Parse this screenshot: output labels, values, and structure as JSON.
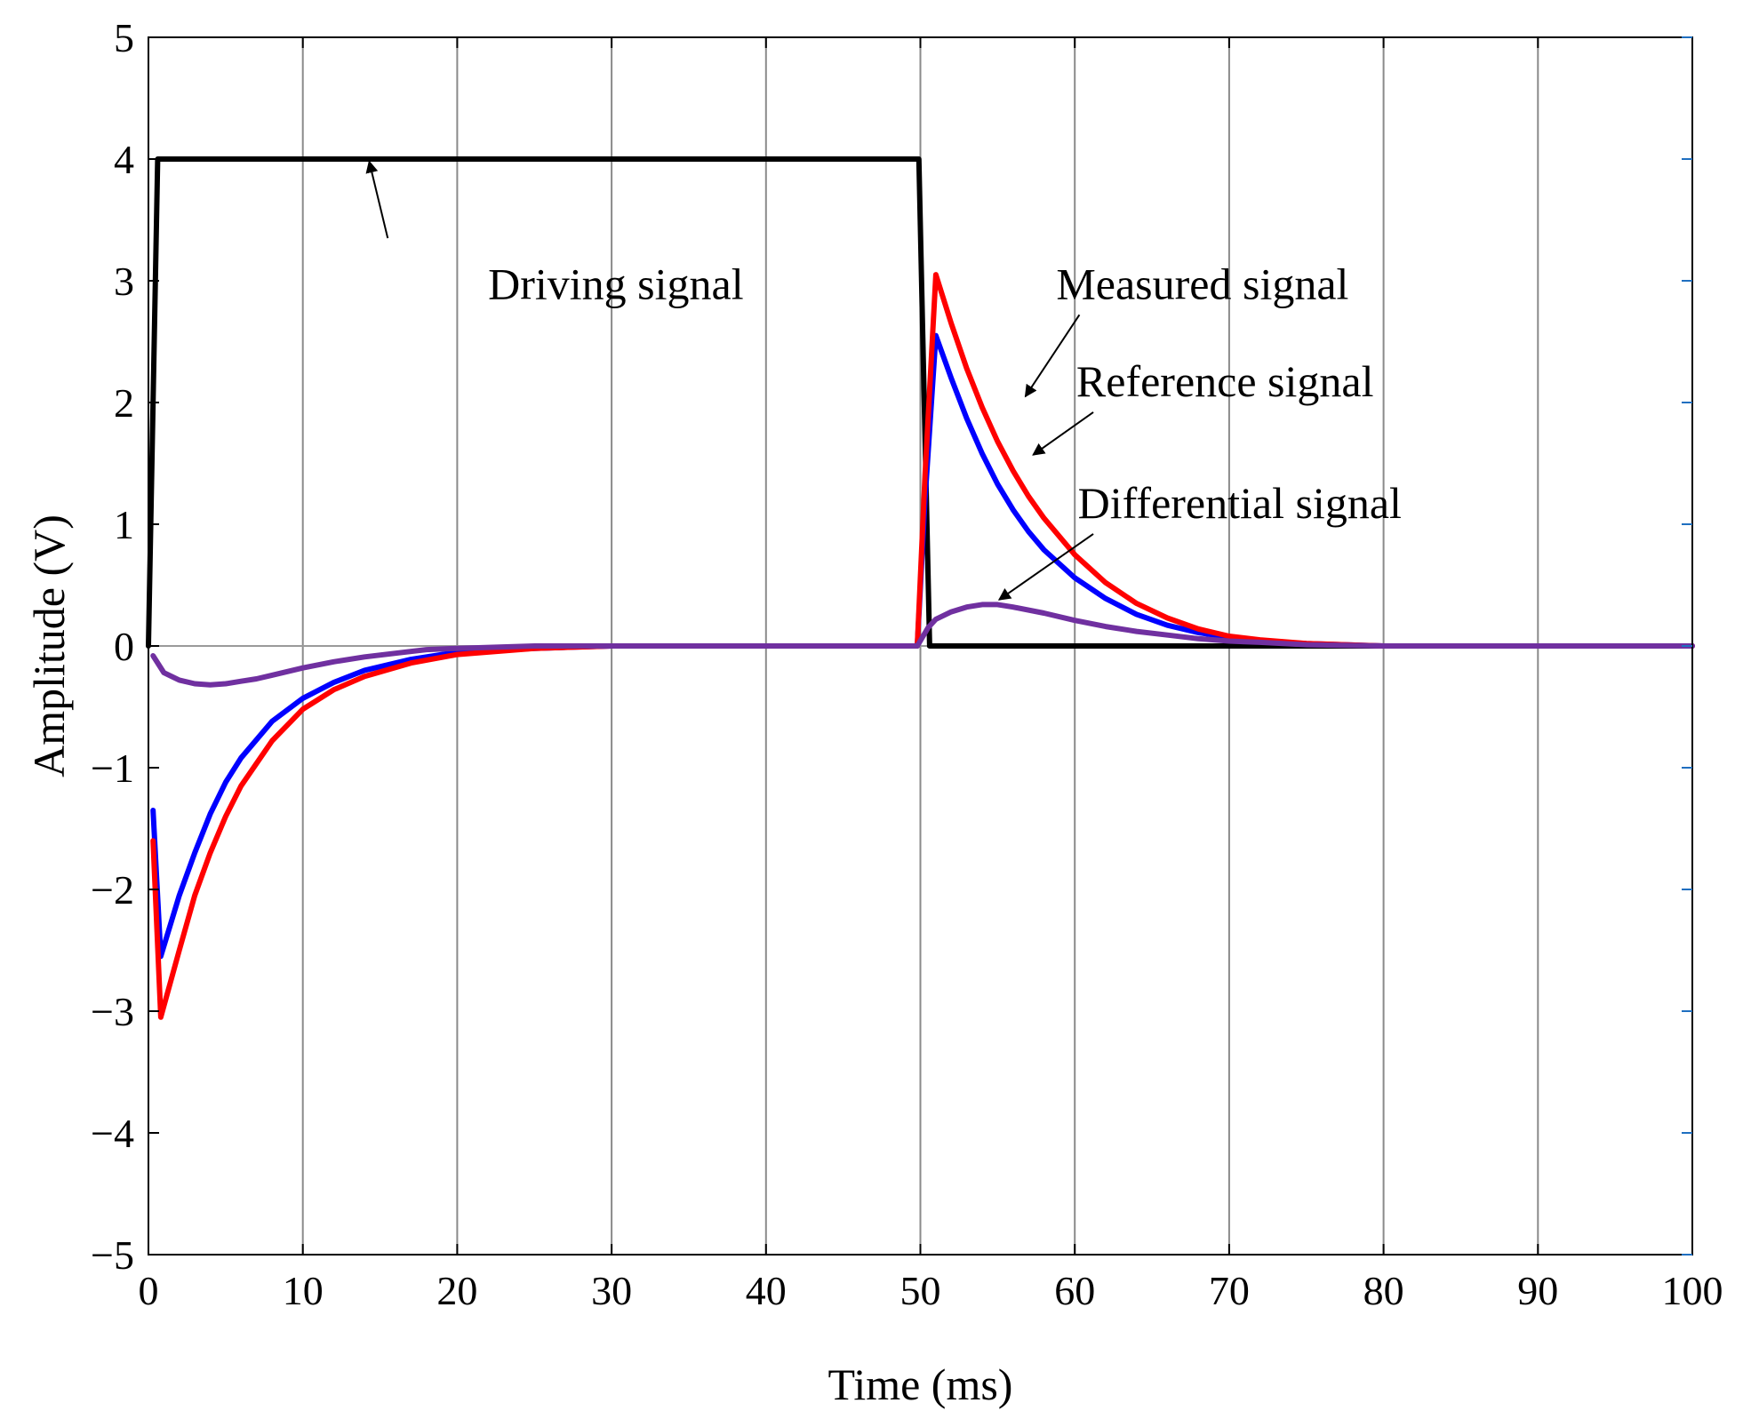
{
  "chart_data": {
    "type": "line",
    "title": "",
    "xlabel": "Time (ms)",
    "ylabel": "Amplitude (V)",
    "xlim": [
      0,
      100
    ],
    "ylim": [
      -5,
      5
    ],
    "xticks": [
      0,
      10,
      20,
      30,
      40,
      50,
      60,
      70,
      80,
      90,
      100
    ],
    "yticks": [
      5,
      4,
      3,
      2,
      1,
      0,
      -1,
      -2,
      -3,
      -4,
      -5
    ],
    "ytick_labels": [
      "5",
      "4",
      "3",
      "2",
      "1",
      "0",
      "−1",
      "−2",
      "−3",
      "−4",
      "−5"
    ],
    "xgrid": true,
    "ygrid": false,
    "series": [
      {
        "name": "Driving signal",
        "color": "#000000",
        "x": [
          0,
          0.6,
          49.9,
          50.6,
          100
        ],
        "y": [
          0,
          4,
          4,
          0,
          0
        ]
      },
      {
        "name": "Reference signal",
        "color": "#0000ff",
        "x": [
          0.3,
          0.8,
          2,
          3,
          4,
          5,
          6,
          8,
          10,
          12,
          14,
          17,
          20,
          25,
          30,
          35,
          40,
          45,
          49.8,
          50.3,
          51,
          52,
          53,
          54,
          55,
          56,
          57,
          58,
          60,
          62,
          64,
          66,
          68,
          70,
          72,
          75,
          80,
          90,
          100
        ],
        "y": [
          -1.35,
          -2.55,
          -2.05,
          -1.7,
          -1.38,
          -1.12,
          -0.92,
          -0.62,
          -0.43,
          -0.3,
          -0.2,
          -0.11,
          -0.05,
          -0.02,
          0,
          0,
          0,
          0,
          0,
          1.2,
          2.55,
          2.2,
          1.87,
          1.58,
          1.33,
          1.12,
          0.94,
          0.79,
          0.56,
          0.39,
          0.26,
          0.17,
          0.11,
          0.07,
          0.04,
          0.02,
          0,
          0,
          0
        ]
      },
      {
        "name": "Measured signal",
        "color": "#ff0000",
        "x": [
          0.3,
          0.8,
          2,
          3,
          4,
          5,
          6,
          8,
          10,
          12,
          14,
          17,
          20,
          25,
          30,
          35,
          40,
          45,
          49.8,
          50.3,
          51,
          52,
          53,
          54,
          55,
          56,
          57,
          58,
          60,
          62,
          64,
          66,
          68,
          70,
          72,
          75,
          80,
          90,
          100
        ],
        "y": [
          -1.6,
          -3.05,
          -2.5,
          -2.05,
          -1.7,
          -1.4,
          -1.15,
          -0.78,
          -0.52,
          -0.36,
          -0.25,
          -0.14,
          -0.07,
          -0.02,
          0,
          0,
          0,
          0,
          0,
          1.4,
          3.05,
          2.65,
          2.28,
          1.96,
          1.68,
          1.44,
          1.23,
          1.05,
          0.75,
          0.52,
          0.35,
          0.23,
          0.14,
          0.08,
          0.05,
          0.02,
          0,
          0,
          0
        ]
      },
      {
        "name": "Differential signal",
        "color": "#7030a0",
        "x": [
          0.3,
          1,
          2,
          3,
          4,
          5,
          6,
          7,
          8,
          10,
          12,
          14,
          16,
          18,
          20,
          25,
          30,
          40,
          49.8,
          50.5,
          51,
          52,
          53,
          54,
          55,
          56,
          58,
          60,
          62,
          64,
          66,
          68,
          70,
          72,
          75,
          80,
          90,
          100
        ],
        "y": [
          -0.08,
          -0.22,
          -0.28,
          -0.31,
          -0.32,
          -0.31,
          -0.29,
          -0.27,
          -0.24,
          -0.18,
          -0.13,
          -0.09,
          -0.06,
          -0.03,
          -0.02,
          0,
          0,
          0,
          0,
          0.15,
          0.22,
          0.28,
          0.32,
          0.34,
          0.34,
          0.32,
          0.27,
          0.21,
          0.16,
          0.12,
          0.09,
          0.06,
          0.04,
          0.03,
          0.01,
          0,
          0,
          0
        ]
      }
    ],
    "annotations": [
      {
        "text": "Driving signal",
        "text_x": 22,
        "text_y": 2.85,
        "arrow_from": [
          15.5,
          3.35
        ],
        "arrow_to": [
          14.3,
          3.98
        ]
      },
      {
        "text": "Measured signal",
        "text_x": 58.8,
        "text_y": 2.85,
        "arrow_from": [
          60.3,
          2.72
        ],
        "arrow_to": [
          56.8,
          2.05
        ]
      },
      {
        "text": "Reference signal",
        "text_x": 60.1,
        "text_y": 2.05,
        "arrow_from": [
          61.2,
          1.92
        ],
        "arrow_to": [
          57.3,
          1.57
        ]
      },
      {
        "text": "Differential signal",
        "text_x": 60.2,
        "text_y": 1.05,
        "arrow_from": [
          61.2,
          0.92
        ],
        "arrow_to": [
          55.1,
          0.38
        ]
      }
    ]
  }
}
